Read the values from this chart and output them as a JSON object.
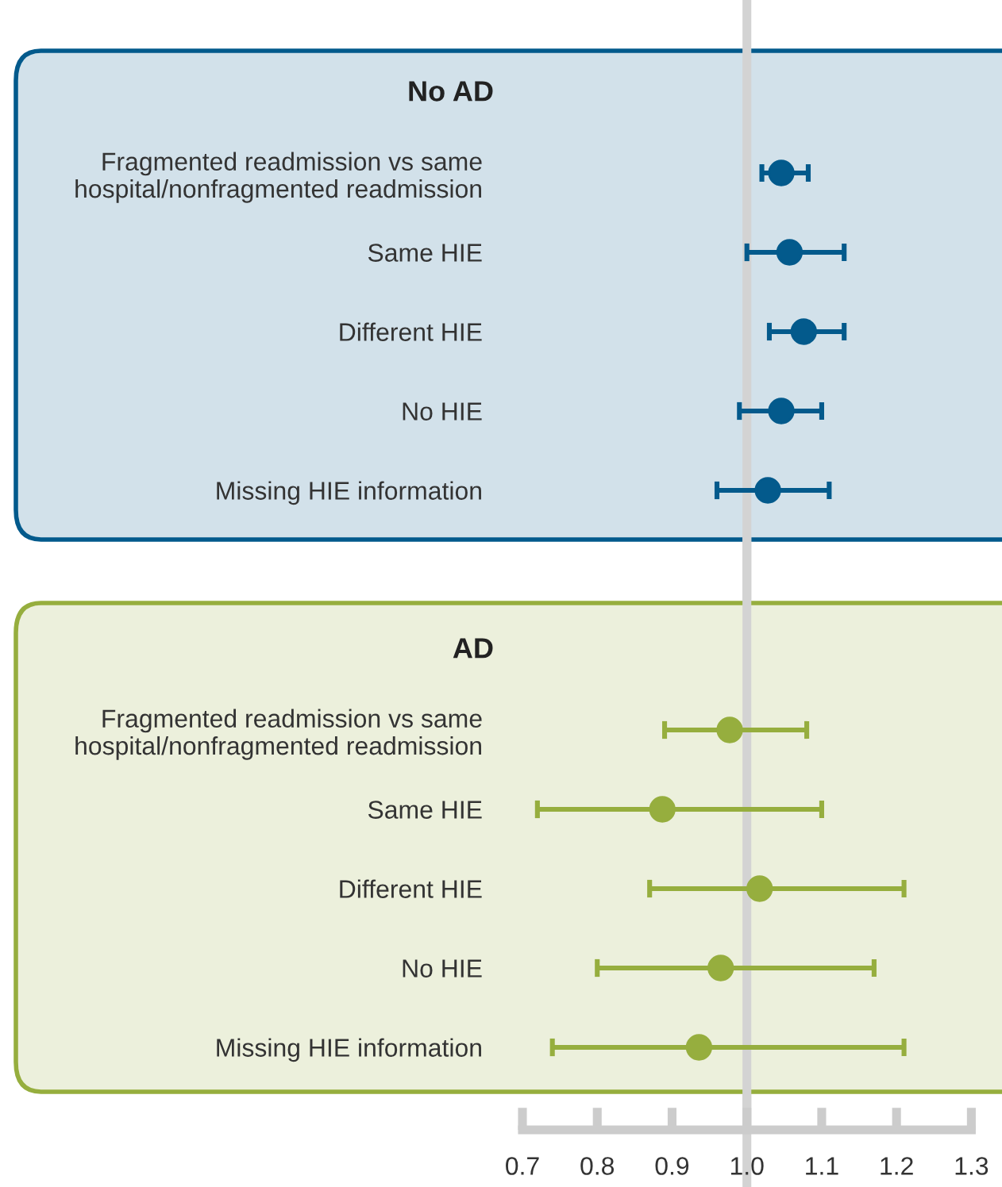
{
  "chart_data": [
    {
      "type": "scatter",
      "orientation": "horizontal",
      "title": "No AD",
      "categories": [
        "Fragmented readmission vs same\nhospital/nonfragmented readmission",
        "Same HIE",
        "Different HIE",
        "No HIE",
        "Missing HIE information"
      ],
      "series": [
        {
          "color": "#035a8c",
          "values": [
            1.046,
            1.057,
            1.076,
            1.046,
            1.028
          ],
          "errors": [
            [
              1.02,
              1.082
            ],
            [
              1.0,
              1.13
            ],
            [
              1.03,
              1.13
            ],
            [
              0.99,
              1.1
            ],
            [
              0.96,
              1.11
            ]
          ]
        }
      ],
      "xlim": [
        0.7,
        1.3
      ],
      "tick_labels": "y",
      "marker": "circle",
      "ref_lines": [
        {
          "axis": "x",
          "value": 1.0,
          "color": "#d3d3d3"
        }
      ]
    },
    {
      "type": "scatter",
      "orientation": "horizontal",
      "title": "AD",
      "categories": [
        "Fragmented readmission vs same\nhospital/nonfragmented readmission",
        "Same HIE",
        "Different HIE",
        "No HIE",
        "Missing HIE information"
      ],
      "series": [
        {
          "color": "#96ae3e",
          "values": [
            0.977,
            0.887,
            1.017,
            0.965,
            0.936
          ],
          "errors": [
            [
              0.89,
              1.08
            ],
            [
              0.72,
              1.1
            ],
            [
              0.87,
              1.21
            ],
            [
              0.8,
              1.17
            ],
            [
              0.74,
              1.21
            ]
          ]
        }
      ],
      "xlim": [
        0.7,
        1.3
      ],
      "xticks": [
        {
          "value": 0.7,
          "label": "0.7"
        },
        {
          "value": 0.8,
          "label": "0.8"
        },
        {
          "value": 0.9,
          "label": "0.9"
        },
        {
          "value": 1.0,
          "label": "1.0"
        },
        {
          "value": 1.1,
          "label": "1.1"
        },
        {
          "value": 1.2,
          "label": "1.2"
        },
        {
          "value": 1.3,
          "label": "1.3"
        }
      ],
      "marker": "circle",
      "ref_lines": [
        {
          "axis": "x",
          "value": 1.0,
          "color": "#d3d3d3"
        }
      ]
    }
  ]
}
